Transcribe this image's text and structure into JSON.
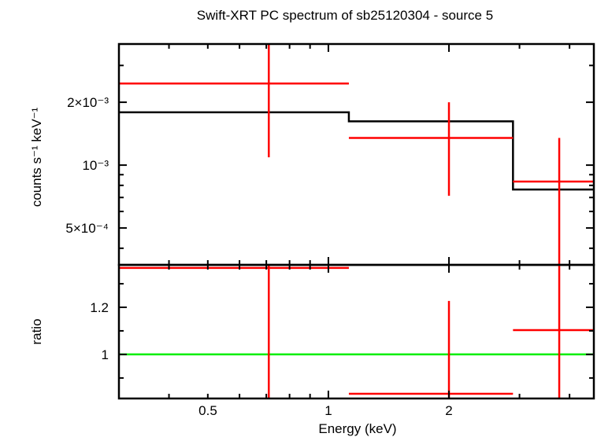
{
  "chart_data": [
    {
      "type": "line",
      "title": "Swift-XRT PC spectrum of sb25120304 - source 5",
      "xlabel": "",
      "ylabel": "counts s⁻¹ keV⁻¹",
      "xscale": "log",
      "yscale": "log",
      "xlim": [
        0.3,
        4.6
      ],
      "ylim": [
        0.000333,
        0.0038
      ],
      "ytick_labels": [
        {
          "value": 0.002,
          "label": "2×10⁻³"
        },
        {
          "value": 0.001,
          "label": "10⁻³"
        },
        {
          "value": 0.0005,
          "label": "5×10⁻⁴"
        }
      ],
      "data": {
        "color": "#ff0000",
        "points": [
          {
            "x": 0.71,
            "xlo": 0.3,
            "xhi": 1.125,
            "y": 0.00246,
            "ylo": 0.00109,
            "yhi": 0.0045
          },
          {
            "x": 2.0,
            "xlo": 1.125,
            "xhi": 2.89,
            "y": 0.00135,
            "ylo": 0.000713,
            "yhi": 0.002
          },
          {
            "x": 3.77,
            "xlo": 2.89,
            "xhi": 4.6,
            "y": 0.000834,
            "ylo": 0.0002,
            "yhi": 0.00135
          }
        ]
      },
      "model": {
        "color": "#000000",
        "steps": [
          {
            "xlo": 0.3,
            "xhi": 1.125,
            "y": 0.00179
          },
          {
            "xlo": 1.125,
            "xhi": 2.89,
            "y": 0.00162
          },
          {
            "xlo": 2.89,
            "xhi": 4.6,
            "y": 0.000764
          }
        ]
      }
    },
    {
      "type": "line",
      "xlabel": "Energy (keV)",
      "ylabel": "ratio",
      "xscale": "log",
      "yscale": "linear",
      "xlim": [
        0.3,
        4.6
      ],
      "ylim": [
        0.813,
        1.38
      ],
      "xtick_labels": [
        {
          "value": 0.5,
          "label": "0.5"
        },
        {
          "value": 1,
          "label": "1"
        },
        {
          "value": 2,
          "label": "2"
        }
      ],
      "ytick_labels": [
        {
          "value": 1.2,
          "label": "1.2"
        },
        {
          "value": 1,
          "label": "1"
        }
      ],
      "reference_line": {
        "y": 1,
        "color": "#00ee00"
      },
      "data": {
        "color": "#ff0000",
        "points": [
          {
            "x": 0.71,
            "xlo": 0.3,
            "xhi": 1.125,
            "y": 1.367,
            "ylo": 0.7,
            "yhi": 1.5
          },
          {
            "x": 2.0,
            "xlo": 1.125,
            "xhi": 2.89,
            "y": 0.833,
            "ylo": 0.7,
            "yhi": 1.227
          },
          {
            "x": 3.77,
            "xlo": 2.89,
            "xhi": 4.6,
            "y": 1.103,
            "ylo": 0.7,
            "yhi": 1.5
          }
        ]
      }
    }
  ]
}
